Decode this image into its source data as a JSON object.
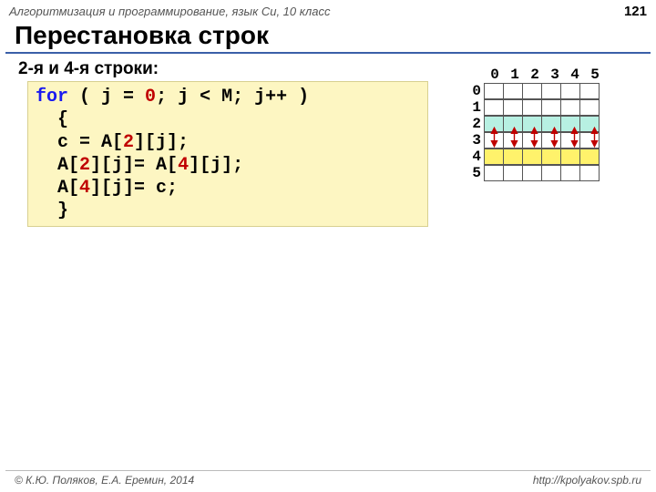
{
  "header": {
    "course": "Алгоритмизация и программирование, язык Си, 10 класс",
    "slide_number": "121"
  },
  "title": "Перестановка строк",
  "subtitle": "2-я и 4-я строки:",
  "code": {
    "l1a": "for",
    "l1b": "( j = ",
    "l1c": "0",
    "l1d": "; j < M; j++ )",
    "l2": "{",
    "l3a": "c = A[",
    "l3b": "2",
    "l3c": "][j];",
    "l4a": "A[",
    "l4b": "2",
    "l4c": "][j]= A[",
    "l4d": "4",
    "l4e": "][j];",
    "l5a": "A[",
    "l5b": "4",
    "l5c": "][j]= c;",
    "l6": "}"
  },
  "grid": {
    "cols": [
      "0",
      "1",
      "2",
      "3",
      "4",
      "5"
    ],
    "rows": [
      "0",
      "1",
      "2",
      "3",
      "4",
      "5"
    ],
    "highlight_row_a": 2,
    "highlight_row_b": 4,
    "color_a": "#b7f0e2",
    "color_b": "#fff26b",
    "arrow_color": "#c00000"
  },
  "footer": {
    "copyright": "© К.Ю. Поляков, Е.А. Еремин, 2014",
    "url": "http://kpolyakov.spb.ru"
  }
}
